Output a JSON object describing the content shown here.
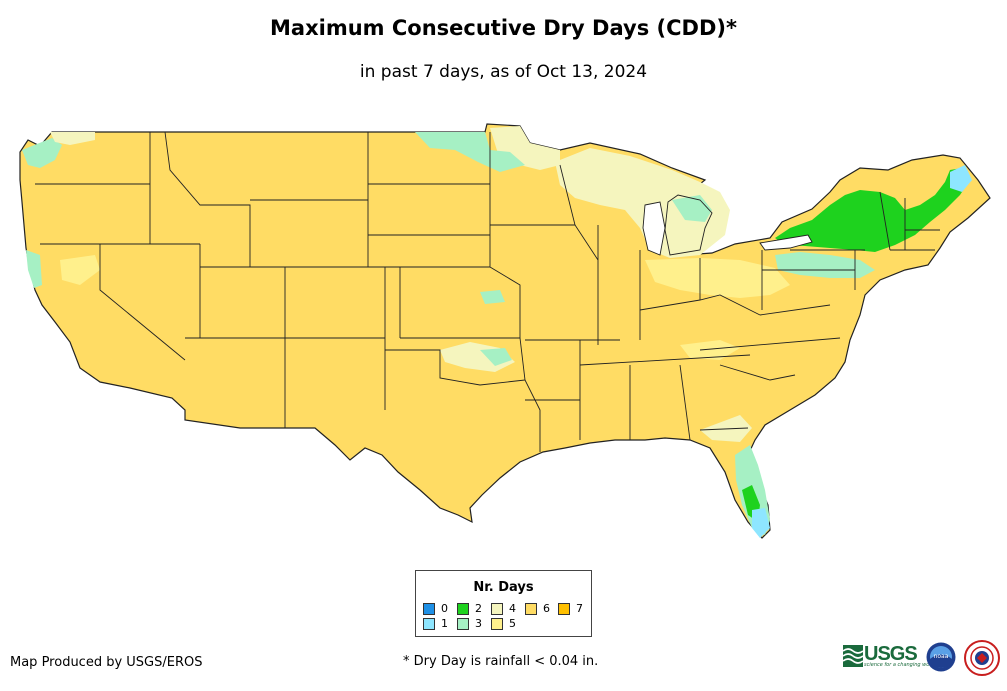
{
  "title": "Maximum Consecutive Dry Days (CDD)*",
  "subtitle": "in past 7 days, as of Oct 13, 2024",
  "legend": {
    "title": "Nr. Days",
    "items": [
      {
        "label": "0",
        "color": "#1e90e6"
      },
      {
        "label": "1",
        "color": "#8ee6ff"
      },
      {
        "label": "2",
        "color": "#1ed21e"
      },
      {
        "label": "3",
        "color": "#a6f0c4"
      },
      {
        "label": "4",
        "color": "#f5f5be"
      },
      {
        "label": "5",
        "color": "#fff08c"
      },
      {
        "label": "6",
        "color": "#ffdc64"
      },
      {
        "label": "7",
        "color": "#ffc000"
      }
    ]
  },
  "credit": "Map Produced by USGS/EROS",
  "footnote": "* Dry Day is rainfall < 0.04 in.",
  "logos": {
    "usgs": "USGS",
    "usgs_tagline": "science for a changing world",
    "noaa": "noaa"
  },
  "colors": {
    "dominant": "#ffdc64",
    "border": "#222222"
  }
}
